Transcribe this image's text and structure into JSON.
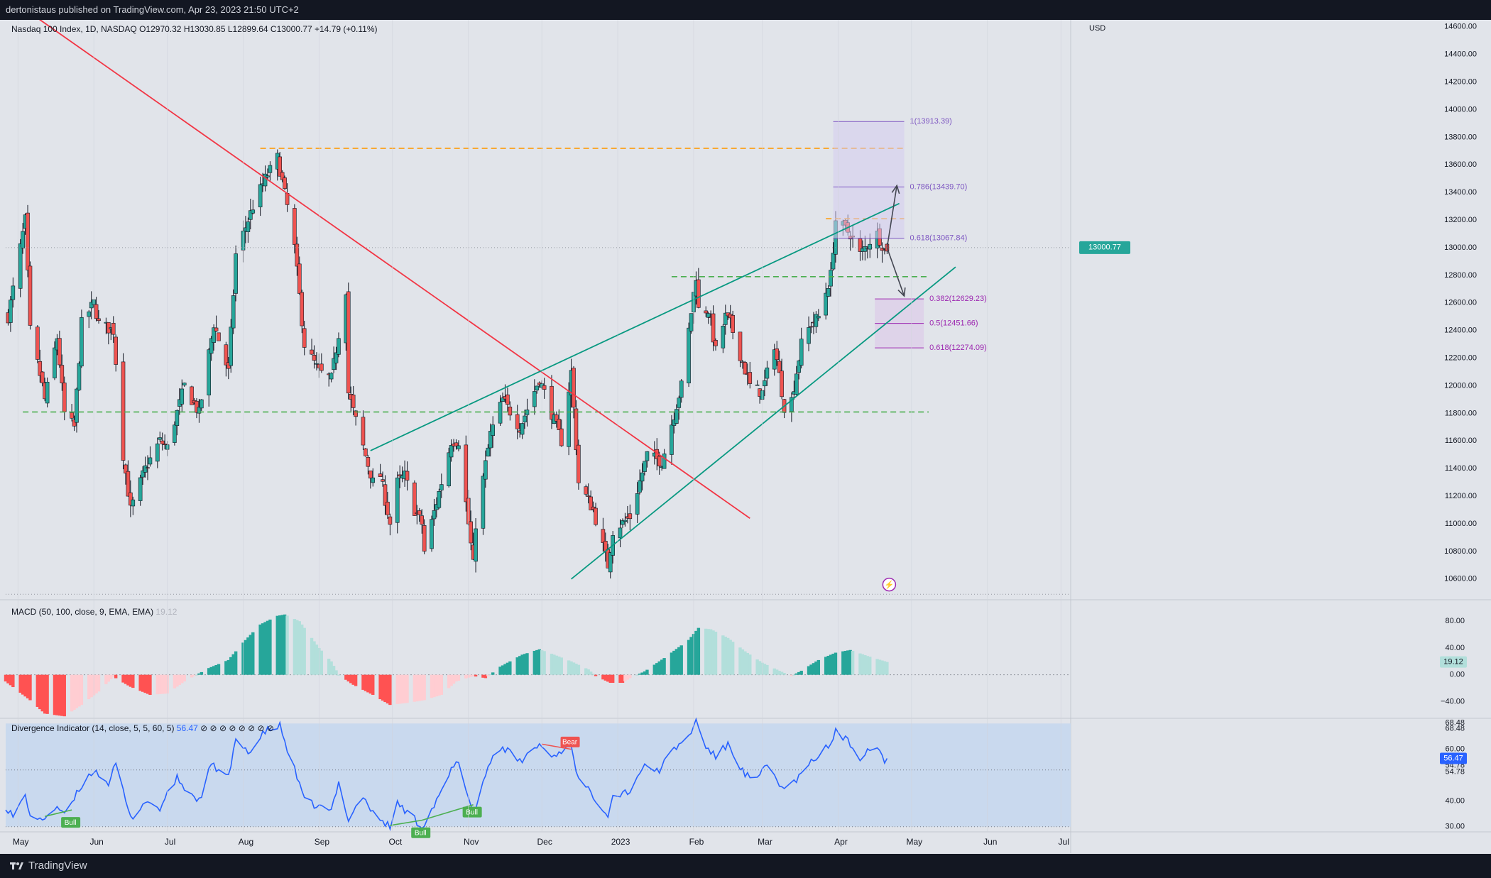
{
  "header": {
    "publisher": "dertonistaus published on TradingView.com, Apr 23, 2023 21:50 UTC+2"
  },
  "footer": {
    "brand": "TradingView"
  },
  "legends": {
    "main": "Nasdaq 100 Index, 1D, NASDAQ  O12970.32  H13030.85  L12899.64  C13000.77  +14.79 (+0.11%)",
    "macd_label": "MACD (50, 100, close, 9, EMA, EMA)",
    "macd_value": "19.12",
    "div_label": "Divergence Indicator (14, close, 5, 5, 60, 5)",
    "div_value": "56.47",
    "div_flags": "⊘ ⊘ ⊘ ⊘ ⊘ ⊘ ⊘ ⊘"
  },
  "colors": {
    "background": "#e1e4ea",
    "panel": "#131722",
    "up": "#26a69a",
    "down": "#ef5350",
    "hist_up_strong": "#26a69a",
    "hist_up_weak": "#b2dfdb",
    "hist_down_strong": "#ff5252",
    "hist_down_weak": "#ffcdd2",
    "trend_red": "#f23645",
    "trend_teal": "#089981",
    "level_green": "#4caf50",
    "level_orange": "#ff9800",
    "fib_purple": "#9c27b0",
    "fib_purple2": "#7e57c2",
    "rsi_line": "#2962ff",
    "rsi_band": "#c9d9ee"
  },
  "chart_data": [
    {
      "type": "candlestick",
      "title": "Nasdaq 100 Index, 1D, NASDAQ",
      "ohlc_last": {
        "open": 12970.32,
        "high": 13030.85,
        "low": 12899.64,
        "close": 13000.77,
        "change": "+14.79 (+0.11%)"
      },
      "y_axis_label": "USD",
      "y_ticks": [
        "14600.00",
        "14400.00",
        "14200.00",
        "14000.00",
        "13800.00",
        "13600.00",
        "13400.00",
        "13200.00",
        "13000.00",
        "12800.00",
        "12600.00",
        "12400.00",
        "12200.00",
        "12000.00",
        "11800.00",
        "11600.00",
        "11400.00",
        "11200.00",
        "11000.00",
        "10800.00",
        "10600.00"
      ],
      "ylim": [
        10450,
        14650
      ],
      "x_ticks": [
        "May",
        "Jun",
        "Jul",
        "Aug",
        "Sep",
        "Oct",
        "Nov",
        "Dec",
        "2023",
        "Feb",
        "Mar",
        "Apr",
        "May",
        "Jun",
        "Jul"
      ],
      "x_range": [
        "2022-04-26",
        "2023-07-05"
      ],
      "last_price_label": "13000.77",
      "anchors": [
        [
          "2022-04-27",
          12500
        ],
        [
          "2022-05-04",
          13200
        ],
        [
          "2022-05-06",
          12400
        ],
        [
          "2022-05-11",
          12000
        ],
        [
          "2022-05-12",
          11900
        ],
        [
          "2022-05-17",
          12350
        ],
        [
          "2022-05-20",
          11800
        ],
        [
          "2022-05-24",
          11700
        ],
        [
          "2022-05-27",
          12450
        ],
        [
          "2022-06-01",
          12600
        ],
        [
          "2022-06-03",
          12450
        ],
        [
          "2022-06-09",
          12400
        ],
        [
          "2022-06-13",
          11500
        ],
        [
          "2022-06-16",
          11100
        ],
        [
          "2022-06-22",
          11400
        ],
        [
          "2022-06-28",
          11600
        ],
        [
          "2022-07-01",
          11550
        ],
        [
          "2022-07-08",
          12000
        ],
        [
          "2022-07-14",
          11800
        ],
        [
          "2022-07-20",
          12450
        ],
        [
          "2022-07-26",
          12100
        ],
        [
          "2022-07-29",
          12950
        ],
        [
          "2022-08-05",
          13300
        ],
        [
          "2022-08-10",
          13500
        ],
        [
          "2022-08-15",
          13650
        ],
        [
          "2022-08-19",
          13300
        ],
        [
          "2022-08-22",
          13000
        ],
        [
          "2022-08-26",
          12300
        ],
        [
          "2022-09-01",
          12100
        ],
        [
          "2022-09-06",
          12050
        ],
        [
          "2022-09-12",
          12700
        ],
        [
          "2022-09-13",
          11950
        ],
        [
          "2022-09-16",
          11750
        ],
        [
          "2022-09-23",
          11300
        ],
        [
          "2022-09-26",
          11350
        ],
        [
          "2022-09-30",
          11000
        ],
        [
          "2022-10-03",
          11300
        ],
        [
          "2022-10-06",
          11350
        ],
        [
          "2022-10-10",
          11100
        ],
        [
          "2022-10-13",
          11000
        ],
        [
          "2022-10-14",
          10800
        ],
        [
          "2022-10-21",
          11300
        ],
        [
          "2022-10-25",
          11600
        ],
        [
          "2022-10-28",
          11600
        ],
        [
          "2022-11-03",
          10700
        ],
        [
          "2022-11-04",
          11000
        ],
        [
          "2022-11-10",
          11650
        ],
        [
          "2022-11-15",
          11900
        ],
        [
          "2022-11-22",
          11700
        ],
        [
          "2022-11-30",
          12050
        ],
        [
          "2022-12-02",
          11950
        ],
        [
          "2022-12-09",
          11600
        ],
        [
          "2022-12-13",
          12100
        ],
        [
          "2022-12-16",
          11300
        ],
        [
          "2022-12-22",
          11100
        ],
        [
          "2022-12-28",
          10700
        ],
        [
          "2022-12-30",
          10950
        ],
        [
          "2023-01-06",
          11050
        ],
        [
          "2023-01-13",
          11500
        ],
        [
          "2023-01-19",
          11450
        ],
        [
          "2023-01-27",
          12000
        ],
        [
          "2023-02-02",
          12800
        ],
        [
          "2023-02-03",
          12550
        ],
        [
          "2023-02-07",
          12550
        ],
        [
          "2023-02-10",
          12250
        ],
        [
          "2023-02-14",
          12500
        ],
        [
          "2023-02-16",
          12450
        ],
        [
          "2023-02-24",
          12000
        ],
        [
          "2023-03-01",
          11950
        ],
        [
          "2023-03-06",
          12300
        ],
        [
          "2023-03-10",
          11850
        ],
        [
          "2023-03-13",
          11900
        ],
        [
          "2023-03-17",
          12300
        ],
        [
          "2023-03-21",
          12450
        ],
        [
          "2023-03-24",
          12500
        ],
        [
          "2023-03-29",
          12800
        ],
        [
          "2023-03-31",
          13200
        ],
        [
          "2023-04-06",
          13100
        ],
        [
          "2023-04-10",
          12950
        ],
        [
          "2023-04-14",
          13050
        ],
        [
          "2023-04-17",
          13100
        ],
        [
          "2023-04-20",
          12985
        ],
        [
          "2023-04-21",
          13000.77
        ]
      ],
      "levels": [
        {
          "name": "resistance-13720",
          "price": 13720,
          "from": "2022-08-08",
          "to": "2023-04-28",
          "style": "dashed",
          "color": "orange"
        },
        {
          "name": "support-12790",
          "price": 12790,
          "from": "2023-01-23",
          "to": "2023-05-08",
          "style": "dashed",
          "color": "green"
        },
        {
          "name": "support-11810",
          "price": 11810,
          "from": "2022-05-03",
          "to": "2023-05-08",
          "style": "dashed",
          "color": "green"
        },
        {
          "name": "resistance-13210",
          "price": 13210,
          "from": "2023-03-27",
          "to": "2023-04-28",
          "style": "dashed",
          "color": "orange"
        },
        {
          "name": "price-13000",
          "price": 13000.77,
          "from": "2022-04-26",
          "to": "2023-07-05",
          "style": "dotted",
          "color": "gray"
        },
        {
          "name": "low-10490",
          "price": 10490,
          "from": "2022-04-26",
          "to": "2023-07-05",
          "style": "dotted",
          "color": "gray"
        }
      ],
      "trendlines": [
        {
          "name": "red-downtrend",
          "from": [
            "2022-04-28",
            14800
          ],
          "to": [
            "2023-02-24",
            11040
          ]
        },
        {
          "name": "teal-upper",
          "from": [
            "2022-09-22",
            11530
          ],
          "to": [
            "2023-04-26",
            13320
          ]
        },
        {
          "name": "teal-lower",
          "from": [
            "2022-12-13",
            10600
          ],
          "to": [
            "2023-05-19",
            12860
          ]
        }
      ],
      "fib_upper": {
        "from": "2023-03-30",
        "to": "2023-04-28",
        "levels": [
          {
            "label": "1(13913.39)",
            "price": 13913.39
          },
          {
            "label": "0.786(13439.70)",
            "price": 13439.7
          },
          {
            "label": "0.618(13067.84)",
            "price": 13067.84
          }
        ]
      },
      "fib_lower": {
        "from": "2023-04-16",
        "to": "2023-05-06",
        "levels": [
          {
            "label": "0.382(12629.23)",
            "price": 12629.23
          },
          {
            "label": "0.5(12451.66)",
            "price": 12451.66
          },
          {
            "label": "0.618(12274.09)",
            "price": 12274.09
          }
        ]
      },
      "arrows": [
        {
          "name": "arrow-up",
          "from": [
            "2023-04-21",
            13000
          ],
          "to": [
            "2023-04-25",
            13450
          ]
        },
        {
          "name": "arrow-down",
          "from": [
            "2023-04-21",
            13000
          ],
          "to": [
            "2023-04-28",
            12650
          ]
        }
      ],
      "event_marker": {
        "date": "2023-04-21",
        "price": 10560,
        "glyph": "⚡"
      }
    },
    {
      "type": "bar",
      "title": "MACD (50, 100, close, 9, EMA, EMA)",
      "y_ticks": [
        "80.00",
        "40.00",
        "0.00",
        "−40.00"
      ],
      "ylim": [
        -65,
        112
      ],
      "last_value_label": "19.12",
      "anchors": [
        [
          "2022-04-26",
          -10
        ],
        [
          "2022-05-06",
          -38
        ],
        [
          "2022-05-12",
          -58
        ],
        [
          "2022-05-20",
          -62
        ],
        [
          "2022-05-27",
          -45
        ],
        [
          "2022-06-03",
          -25
        ],
        [
          "2022-06-09",
          -3
        ],
        [
          "2022-06-16",
          -18
        ],
        [
          "2022-06-24",
          -30
        ],
        [
          "2022-07-01",
          -28
        ],
        [
          "2022-07-08",
          -10
        ],
        [
          "2022-07-13",
          0
        ],
        [
          "2022-07-18",
          10
        ],
        [
          "2022-07-26",
          22
        ],
        [
          "2022-08-01",
          48
        ],
        [
          "2022-08-08",
          75
        ],
        [
          "2022-08-15",
          88
        ],
        [
          "2022-08-18",
          90
        ],
        [
          "2022-08-24",
          80
        ],
        [
          "2022-09-01",
          40
        ],
        [
          "2022-09-06",
          20
        ],
        [
          "2022-09-09",
          0
        ],
        [
          "2022-09-15",
          -15
        ],
        [
          "2022-09-23",
          -30
        ],
        [
          "2022-09-30",
          -45
        ],
        [
          "2022-10-07",
          -42
        ],
        [
          "2022-10-14",
          -38
        ],
        [
          "2022-10-21",
          -30
        ],
        [
          "2022-10-27",
          -10
        ],
        [
          "2022-11-03",
          -2
        ],
        [
          "2022-11-08",
          -5
        ],
        [
          "2022-11-14",
          12
        ],
        [
          "2022-11-23",
          30
        ],
        [
          "2022-11-30",
          38
        ],
        [
          "2022-12-06",
          30
        ],
        [
          "2022-12-13",
          20
        ],
        [
          "2022-12-20",
          8
        ],
        [
          "2022-12-23",
          -2
        ],
        [
          "2022-12-29",
          -12
        ],
        [
          "2023-01-03",
          -12
        ],
        [
          "2023-01-06",
          -5
        ],
        [
          "2023-01-12",
          5
        ],
        [
          "2023-01-20",
          25
        ],
        [
          "2023-01-30",
          52
        ],
        [
          "2023-02-03",
          70
        ],
        [
          "2023-02-08",
          68
        ],
        [
          "2023-02-15",
          55
        ],
        [
          "2023-02-22",
          35
        ],
        [
          "2023-03-01",
          18
        ],
        [
          "2023-03-08",
          6
        ],
        [
          "2023-03-13",
          -2
        ],
        [
          "2023-03-17",
          6
        ],
        [
          "2023-03-24",
          22
        ],
        [
          "2023-03-31",
          33
        ],
        [
          "2023-04-06",
          37
        ],
        [
          "2023-04-13",
          28
        ],
        [
          "2023-04-21",
          19.12
        ]
      ]
    },
    {
      "type": "line",
      "title": "Divergence Indicator (14, close, 5, 5, 60, 5)",
      "y_ticks": [
        "68.48",
        "68.48",
        "60.00",
        "56.47",
        "54.78",
        "54.78",
        "40.00",
        "30.00"
      ],
      "ylim": [
        28,
        72
      ],
      "last_value_label": "56.47",
      "band": [
        30,
        70
      ],
      "dotted_levels": [
        52,
        30
      ],
      "anchors": [
        [
          "2022-04-26",
          38
        ],
        [
          "2022-04-29",
          34
        ],
        [
          "2022-05-04",
          42
        ],
        [
          "2022-05-06",
          35
        ],
        [
          "2022-05-10",
          32
        ],
        [
          "2022-05-17",
          38
        ],
        [
          "2022-05-20",
          34
        ],
        [
          "2022-05-27",
          46
        ],
        [
          "2022-06-01",
          52
        ],
        [
          "2022-06-07",
          47
        ],
        [
          "2022-06-10",
          54
        ],
        [
          "2022-06-16",
          33
        ],
        [
          "2022-06-22",
          40
        ],
        [
          "2022-06-28",
          37
        ],
        [
          "2022-07-05",
          49
        ],
        [
          "2022-07-08",
          45
        ],
        [
          "2022-07-14",
          40
        ],
        [
          "2022-07-19",
          54
        ],
        [
          "2022-07-26",
          49
        ],
        [
          "2022-07-29",
          63
        ],
        [
          "2022-08-04",
          59
        ],
        [
          "2022-08-10",
          67
        ],
        [
          "2022-08-16",
          69
        ],
        [
          "2022-08-19",
          60
        ],
        [
          "2022-08-22",
          52
        ],
        [
          "2022-08-26",
          40
        ],
        [
          "2022-08-31",
          38
        ],
        [
          "2022-09-06",
          36
        ],
        [
          "2022-09-09",
          47
        ],
        [
          "2022-09-13",
          33
        ],
        [
          "2022-09-19",
          42
        ],
        [
          "2022-09-23",
          35
        ],
        [
          "2022-09-30",
          30
        ],
        [
          "2022-10-03",
          39
        ],
        [
          "2022-10-10",
          33
        ],
        [
          "2022-10-13",
          30
        ],
        [
          "2022-10-21",
          43
        ],
        [
          "2022-10-25",
          52
        ],
        [
          "2022-10-28",
          55
        ],
        [
          "2022-11-03",
          35
        ],
        [
          "2022-11-10",
          56
        ],
        [
          "2022-11-15",
          61
        ],
        [
          "2022-11-22",
          55
        ],
        [
          "2022-11-30",
          62
        ],
        [
          "2022-12-05",
          57
        ],
        [
          "2022-12-13",
          62
        ],
        [
          "2022-12-16",
          48
        ],
        [
          "2022-12-22",
          42
        ],
        [
          "2022-12-28",
          35
        ],
        [
          "2022-12-30",
          42
        ],
        [
          "2023-01-06",
          44
        ],
        [
          "2023-01-11",
          53
        ],
        [
          "2023-01-18",
          52
        ],
        [
          "2023-01-24",
          60
        ],
        [
          "2023-01-30",
          65
        ],
        [
          "2023-02-02",
          71
        ],
        [
          "2023-02-06",
          61
        ],
        [
          "2023-02-10",
          57
        ],
        [
          "2023-02-15",
          62
        ],
        [
          "2023-02-22",
          50
        ],
        [
          "2023-02-27",
          48
        ],
        [
          "2023-03-03",
          54
        ],
        [
          "2023-03-10",
          44
        ],
        [
          "2023-03-17",
          50
        ],
        [
          "2023-03-22",
          56
        ],
        [
          "2023-03-29",
          62
        ],
        [
          "2023-03-31",
          67
        ],
        [
          "2023-04-05",
          63
        ],
        [
          "2023-04-10",
          57
        ],
        [
          "2023-04-14",
          61
        ],
        [
          "2023-04-18",
          60
        ],
        [
          "2023-04-20",
          55
        ],
        [
          "2023-04-21",
          56.47
        ]
      ],
      "divergences": [
        {
          "label": "Bull",
          "kind": "bull",
          "from": [
            "2022-05-12",
            34
          ],
          "to": [
            "2022-05-23",
            36.5
          ],
          "tag_at": [
            "2022-05-23",
            34
          ]
        },
        {
          "label": "Bull",
          "kind": "bull",
          "from": [
            "2022-09-30",
            30.5
          ],
          "to": [
            "2022-10-13",
            32.5
          ],
          "tag_at": [
            "2022-10-13",
            30
          ]
        },
        {
          "label": "Bull",
          "kind": "bull",
          "from": [
            "2022-10-13",
            32.5
          ],
          "to": [
            "2022-11-03",
            38.5
          ],
          "tag_at": [
            "2022-11-03",
            38
          ]
        },
        {
          "label": "Bear",
          "kind": "bear",
          "from": [
            "2022-12-01",
            62
          ],
          "to": [
            "2022-12-13",
            60
          ],
          "tag_at": [
            "2022-12-13",
            60.5
          ]
        }
      ]
    }
  ]
}
